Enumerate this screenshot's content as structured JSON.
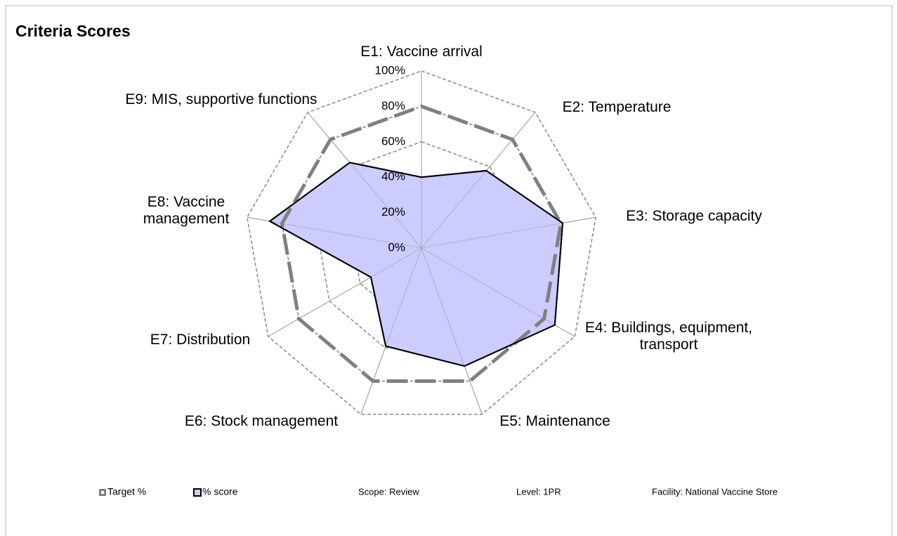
{
  "chart_data": {
    "type": "radar",
    "title": "Criteria Scores",
    "categories": [
      "E1: Vaccine arrival",
      "E2: Temperature",
      "E3: Storage capacity",
      "E4: Buildings, equipment, transport",
      "E5: Maintenance",
      "E6: Stock management",
      "E7: Distribution",
      "E8: Vaccine management",
      "E9: MIS, supportive functions"
    ],
    "series": [
      {
        "name": "Target %",
        "color": "#808080",
        "values": [
          80,
          80,
          80,
          80,
          80,
          80,
          80,
          80,
          80
        ]
      },
      {
        "name": "% score",
        "color": "#ccccff",
        "values": [
          40,
          57,
          81,
          87,
          71,
          59,
          33,
          87,
          63
        ]
      }
    ],
    "ylim": [
      0,
      100
    ],
    "yticks": [
      {
        "value": 0,
        "label": "0%"
      },
      {
        "value": 20,
        "label": "20%"
      },
      {
        "value": 40,
        "label": "40%"
      },
      {
        "value": 60,
        "label": "60%"
      },
      {
        "value": 80,
        "label": "80%"
      },
      {
        "value": 100,
        "label": "100%"
      }
    ],
    "annotations": [
      "Scope: Review",
      "Level: 1PR",
      "Facility: National Vaccine Store"
    ]
  }
}
